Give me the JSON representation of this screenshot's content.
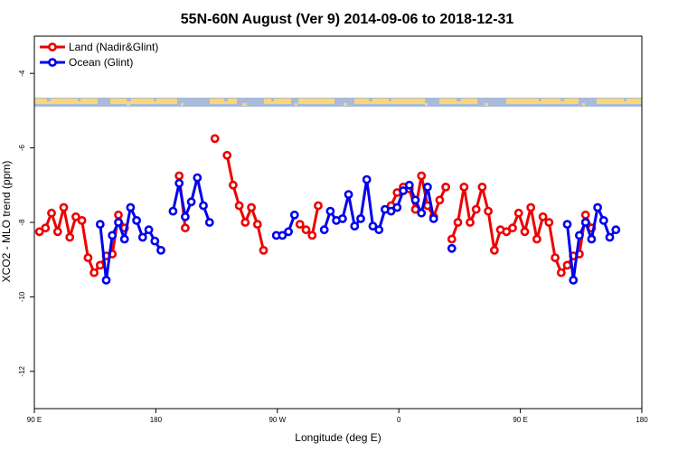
{
  "chart_data": {
    "type": "line",
    "title": "55N-60N August (Ver 9)   2014-09-06 to 2018-12-31",
    "xlabel": "Longitude (deg E)",
    "ylabel": "XCO2 - MLO trend (ppm)",
    "xlim": [
      90,
      450
    ],
    "ylim": [
      -13,
      -3
    ],
    "x_ticks": [
      {
        "value": 90,
        "label": "90 E"
      },
      {
        "value": 162,
        "label": "180"
      },
      {
        "value": 234,
        "label": "90 W"
      },
      {
        "value": 306,
        "label": "0"
      },
      {
        "value": 378,
        "label": "90 E"
      },
      {
        "value": 450,
        "label": "180"
      }
    ],
    "y_ticks": [
      -12,
      -10,
      -8,
      -6,
      -4
    ],
    "legend": {
      "position": "top-left"
    },
    "land_mask_colors": {
      "land": "#fbd676",
      "ocean": "#a9bbd8"
    },
    "series": [
      {
        "name": "Land (Nadir&Glint)",
        "color": "#ee0000",
        "segments": [
          [
            [
              93,
              -8.25
            ],
            [
              96.6,
              -8.15
            ],
            [
              100.2,
              -7.75
            ],
            [
              103.8,
              -8.25
            ],
            [
              107.4,
              -7.6
            ],
            [
              111,
              -8.4
            ],
            [
              114.6,
              -7.85
            ],
            [
              118.2,
              -7.95
            ],
            [
              121.8,
              -8.95
            ],
            [
              125.4,
              -9.35
            ],
            [
              129,
              -9.15
            ],
            [
              132.6,
              -8.9
            ],
            [
              136.2,
              -8.85
            ],
            [
              139.8,
              -7.8
            ],
            [
              143.4,
              -8.15
            ]
          ],
          [
            [
              175.8,
              -6.75
            ],
            [
              179.4,
              -8.15
            ]
          ],
          [
            [
              197,
              -5.75
            ]
          ],
          [
            [
              204.2,
              -6.2
            ],
            [
              207.8,
              -7.0
            ],
            [
              211.4,
              -7.55
            ],
            [
              215,
              -8.0
            ],
            [
              218.6,
              -7.6
            ],
            [
              222.2,
              -8.05
            ],
            [
              225.8,
              -8.75
            ]
          ],
          [
            [
              247.4,
              -8.05
            ],
            [
              251,
              -8.2
            ],
            [
              254.6,
              -8.35
            ],
            [
              258.2,
              -7.55
            ]
          ],
          [
            [
              301.4,
              -7.55
            ],
            [
              305,
              -7.2
            ],
            [
              308.6,
              -7.05
            ],
            [
              312.2,
              -7.1
            ],
            [
              315.8,
              -7.65
            ],
            [
              319.4,
              -6.75
            ],
            [
              323,
              -7.55
            ],
            [
              326.6,
              -7.85
            ],
            [
              330.2,
              -7.4
            ],
            [
              333.8,
              -7.05
            ]
          ],
          [
            [
              337.4,
              -8.45
            ],
            [
              341,
              -8.0
            ],
            [
              344.6,
              -7.05
            ],
            [
              348.2,
              -8.0
            ],
            [
              351.8,
              -7.65
            ],
            [
              355.4,
              -7.05
            ],
            [
              359,
              -7.7
            ],
            [
              362.6,
              -8.75
            ],
            [
              366.2,
              -8.2
            ],
            [
              369.8,
              -8.25
            ],
            [
              373.4,
              -8.15
            ],
            [
              377,
              -7.75
            ],
            [
              380.6,
              -8.25
            ],
            [
              384.2,
              -7.6
            ],
            [
              387.8,
              -8.45
            ],
            [
              391.4,
              -7.85
            ],
            [
              395,
              -8.0
            ],
            [
              398.6,
              -8.95
            ],
            [
              402.2,
              -9.35
            ],
            [
              405.8,
              -9.15
            ],
            [
              409.4,
              -8.9
            ],
            [
              413,
              -8.85
            ],
            [
              416.6,
              -7.8
            ],
            [
              420.2,
              -8.15
            ]
          ]
        ]
      },
      {
        "name": "Ocean (Glint)",
        "color": "#0000ee",
        "segments": [
          [
            [
              129,
              -8.05
            ],
            [
              132.6,
              -9.55
            ],
            [
              136.2,
              -8.35
            ],
            [
              139.8,
              -8.0
            ],
            [
              143.4,
              -8.45
            ],
            [
              147,
              -7.6
            ],
            [
              150.6,
              -7.95
            ],
            [
              154.2,
              -8.4
            ],
            [
              157.8,
              -8.2
            ],
            [
              161.4,
              -8.5
            ],
            [
              165,
              -8.75
            ]
          ],
          [
            [
              172.2,
              -7.7
            ],
            [
              175.8,
              -6.95
            ],
            [
              179.4,
              -7.85
            ],
            [
              183,
              -7.45
            ],
            [
              186.6,
              -6.8
            ],
            [
              190.2,
              -7.55
            ],
            [
              193.8,
              -8.0
            ]
          ],
          [
            [
              233.4,
              -8.35
            ],
            [
              237,
              -8.35
            ],
            [
              240.6,
              -8.25
            ],
            [
              244.2,
              -7.8
            ]
          ],
          [
            [
              261.8,
              -8.2
            ],
            [
              265.4,
              -7.7
            ],
            [
              269,
              -7.95
            ],
            [
              272.6,
              -7.9
            ],
            [
              276.2,
              -7.25
            ],
            [
              279.8,
              -8.1
            ],
            [
              283.4,
              -7.9
            ],
            [
              287,
              -6.85
            ],
            [
              290.6,
              -8.1
            ],
            [
              294.2,
              -8.2
            ],
            [
              297.8,
              -7.65
            ],
            [
              301.4,
              -7.7
            ],
            [
              305,
              -7.6
            ],
            [
              308.6,
              -7.15
            ],
            [
              312.2,
              -7.0
            ],
            [
              315.8,
              -7.4
            ],
            [
              319.4,
              -7.75
            ],
            [
              323,
              -7.05
            ],
            [
              326.6,
              -7.9
            ]
          ],
          [
            [
              337.4,
              -8.7
            ]
          ],
          [
            [
              405.8,
              -8.05
            ],
            [
              409.4,
              -9.55
            ],
            [
              413,
              -8.35
            ],
            [
              416.6,
              -8.0
            ],
            [
              420.2,
              -8.45
            ],
            [
              423.8,
              -7.6
            ],
            [
              427.4,
              -7.95
            ],
            [
              431,
              -8.4
            ],
            [
              434.6,
              -8.2
            ]
          ]
        ]
      }
    ]
  }
}
